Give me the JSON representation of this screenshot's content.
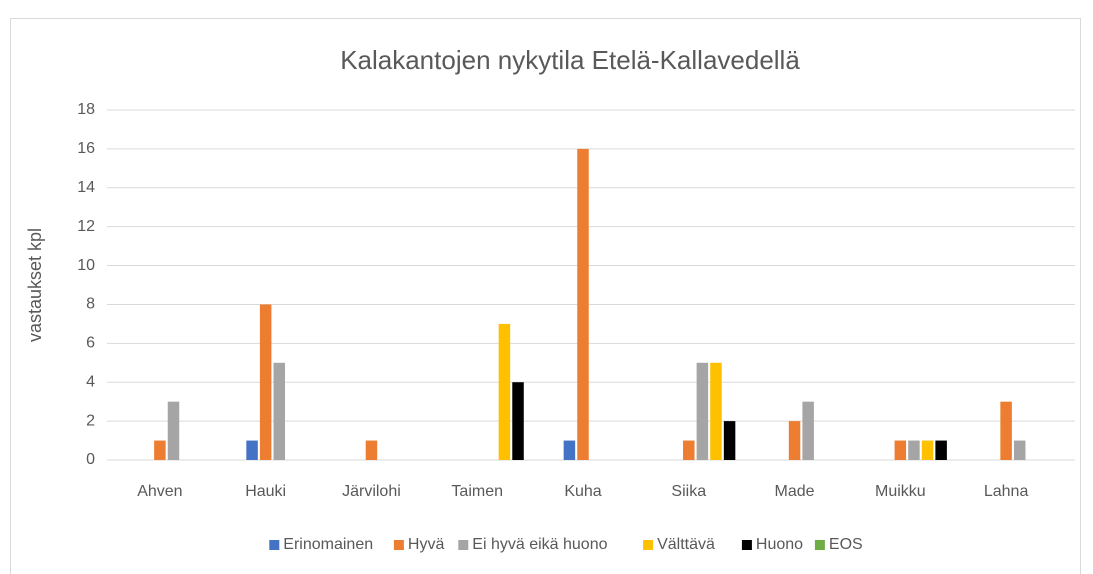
{
  "chart_data": {
    "type": "bar",
    "title": "Kalakantojen nykytila Etelä-Kallavedellä",
    "y_label": "vastaukset kpl",
    "categories": [
      "Ahven",
      "Hauki",
      "Järvilohi",
      "Taimen",
      "Kuha",
      "Siika",
      "Made",
      "Muikku",
      "Lahna"
    ],
    "series": [
      {
        "name": "Erinomainen",
        "color": "#4472c4",
        "values": [
          0,
          1,
          0,
          0,
          1,
          0,
          0,
          0,
          0
        ]
      },
      {
        "name": "Hyvä",
        "color": "#ed7d31",
        "values": [
          1,
          8,
          1,
          0,
          16,
          1,
          2,
          1,
          3
        ]
      },
      {
        "name": "Ei hyvä eikä huono",
        "color": "#a5a5a5",
        "values": [
          3,
          5,
          0,
          0,
          0,
          5,
          3,
          1,
          1
        ]
      },
      {
        "name": "Välttävä",
        "color": "#ffc000",
        "values": [
          0,
          0,
          0,
          7,
          0,
          5,
          0,
          1,
          0
        ]
      },
      {
        "name": "Huono",
        "color": "#000000",
        "values": [
          0,
          0,
          0,
          4,
          0,
          2,
          0,
          1,
          0
        ]
      },
      {
        "name": "EOS",
        "color": "#70ad47",
        "values": [
          0,
          0,
          0,
          0,
          0,
          0,
          0,
          0,
          0
        ]
      }
    ],
    "ylim": [
      0,
      18
    ],
    "yticks": [
      0,
      2,
      4,
      6,
      8,
      10,
      12,
      14,
      16,
      18
    ],
    "grid": true,
    "legend": "bottom"
  }
}
